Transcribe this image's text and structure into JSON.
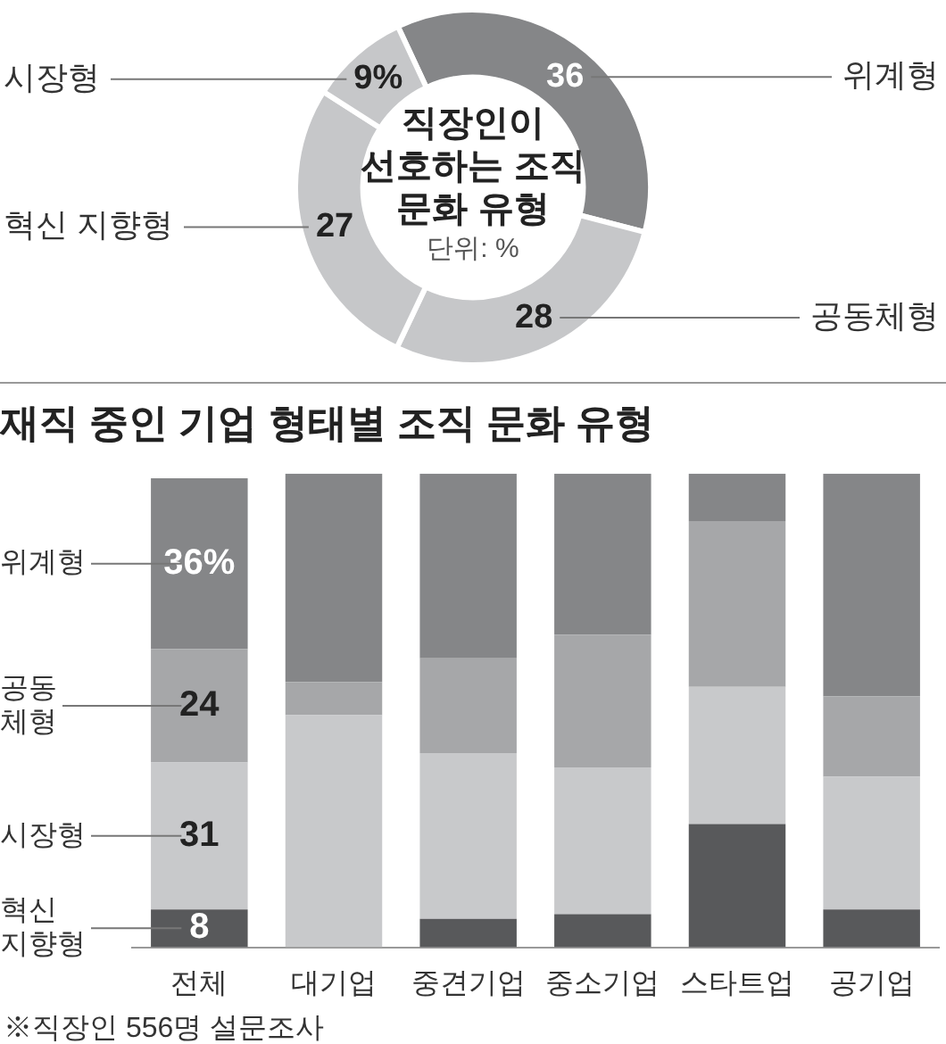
{
  "chart_data": [
    {
      "type": "donut",
      "title": "직장인이 선호하는 조직 문화 유형",
      "subtitle": "단위: %",
      "categories": [
        "위계형",
        "공동체형",
        "혁신 지향형",
        "시장형"
      ],
      "values": [
        36,
        28,
        27,
        9
      ],
      "colors": [
        "#858688",
        "#c6c7c9",
        "#c6c7c9",
        "#c6c7c9"
      ],
      "value_labels": [
        "36",
        "28",
        "27",
        "9%"
      ]
    },
    {
      "type": "bar",
      "title": "재직 중인 기업 형태별 조직 문화 유형",
      "categories": [
        "전체",
        "대기업",
        "중견기업",
        "중소기업",
        "스타트업",
        "공기업"
      ],
      "stacked": true,
      "ylim": [
        0,
        100
      ],
      "tick_labels": "x",
      "series": [
        {
          "name": "혁신 지향형",
          "color": "#58595b",
          "values": [
            8,
            0,
            6,
            7,
            26,
            8
          ],
          "value_labels": [
            "8",
            null,
            null,
            null,
            null,
            null
          ]
        },
        {
          "name": "시장형",
          "color": "#c8c9cb",
          "values": [
            31,
            49,
            35,
            31,
            29,
            28
          ],
          "value_labels": [
            "31",
            null,
            null,
            null,
            null,
            null
          ]
        },
        {
          "name": "공동체형",
          "color": "#a6a7a9",
          "values": [
            24,
            7,
            20,
            28,
            35,
            17
          ],
          "value_labels": [
            "24",
            null,
            null,
            null,
            null,
            null
          ]
        },
        {
          "name": "위계형",
          "color": "#858688",
          "values": [
            36,
            44,
            39,
            34,
            10,
            47
          ],
          "value_labels": [
            "36%",
            null,
            null,
            null,
            null,
            null
          ]
        }
      ],
      "annotations": [
        "※직장인 556명 설문조사"
      ]
    }
  ]
}
